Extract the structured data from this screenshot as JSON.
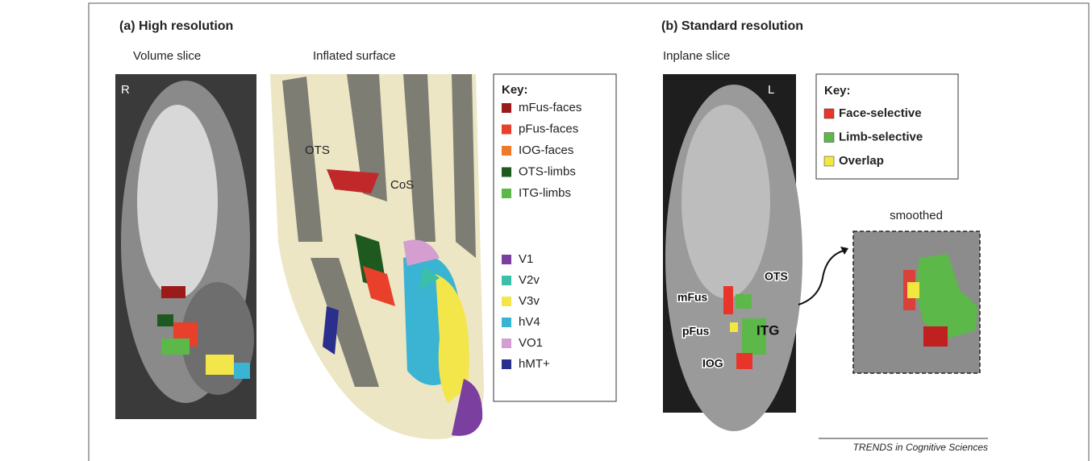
{
  "panel_a": {
    "title": "(a)  High resolution",
    "volume_label": "Volume slice",
    "surface_label": "Inflated surface",
    "side": "R",
    "surface_labels": [
      "OTS",
      "CoS"
    ],
    "key": {
      "title": "Key:",
      "items": [
        {
          "name": "mFus-faces",
          "color": "#9b1b1b"
        },
        {
          "name": "pFus-faces",
          "color": "#e8402a"
        },
        {
          "name": "IOG-faces",
          "color": "#f07a2a"
        },
        {
          "name": "OTS-limbs",
          "color": "#1e5a20"
        },
        {
          "name": "ITG-limbs",
          "color": "#5cb848"
        },
        {
          "name": "V1",
          "color": "#7b3fa0"
        },
        {
          "name": "V2v",
          "color": "#3cbfa8"
        },
        {
          "name": "V3v",
          "color": "#f2e64a"
        },
        {
          "name": "hV4",
          "color": "#3bb3d3"
        },
        {
          "name": "VO1",
          "color": "#d49ed0"
        },
        {
          "name": "hMT+",
          "color": "#2a2e8c"
        }
      ]
    }
  },
  "panel_b": {
    "title": "(b)  Standard resolution",
    "slice_label": "Inplane slice",
    "side": "L",
    "region_labels": [
      "OTS",
      "mFus",
      "pFus",
      "ITG",
      "IOG"
    ],
    "smoothed_label": "smoothed",
    "key": {
      "title": "Key:",
      "items": [
        {
          "name": "Face-selective",
          "color": "#e8342a"
        },
        {
          "name": "Limb-selective",
          "color": "#5cb848"
        },
        {
          "name": "Overlap",
          "color": "#f2e640"
        }
      ]
    }
  },
  "footer": "TRENDS in Cognitive Sciences"
}
